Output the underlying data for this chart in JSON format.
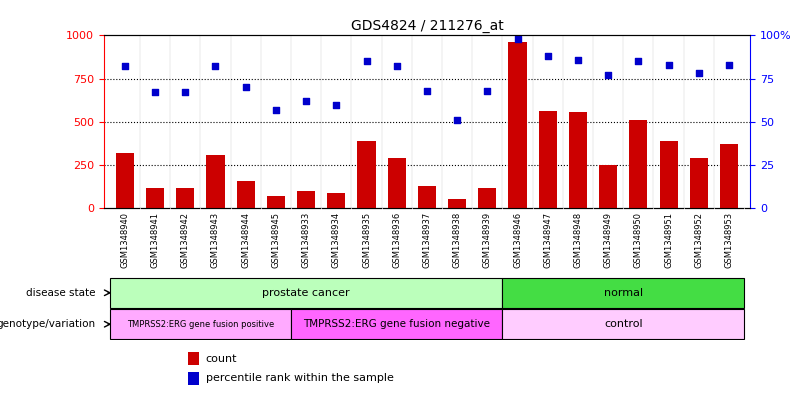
{
  "title": "GDS4824 / 211276_at",
  "samples": [
    "GSM1348940",
    "GSM1348941",
    "GSM1348942",
    "GSM1348943",
    "GSM1348944",
    "GSM1348945",
    "GSM1348933",
    "GSM1348934",
    "GSM1348935",
    "GSM1348936",
    "GSM1348937",
    "GSM1348938",
    "GSM1348939",
    "GSM1348946",
    "GSM1348947",
    "GSM1348948",
    "GSM1348949",
    "GSM1348950",
    "GSM1348951",
    "GSM1348952",
    "GSM1348953"
  ],
  "counts": [
    320,
    120,
    120,
    310,
    160,
    70,
    100,
    90,
    390,
    290,
    130,
    55,
    115,
    960,
    560,
    555,
    250,
    510,
    390,
    290,
    370
  ],
  "percentiles": [
    82,
    67,
    67,
    82,
    70,
    57,
    62,
    60,
    85,
    82,
    68,
    51,
    68,
    98,
    88,
    86,
    77,
    85,
    83,
    78,
    83
  ],
  "bar_color": "#cc0000",
  "dot_color": "#0000cc",
  "left_ylim": [
    0,
    1000
  ],
  "right_ylim": [
    0,
    100
  ],
  "left_yticks": [
    0,
    250,
    500,
    750,
    1000
  ],
  "right_yticks": [
    0,
    25,
    50,
    75,
    100
  ],
  "right_yticklabels": [
    "0",
    "25",
    "50",
    "75",
    "100%"
  ],
  "dotted_line_vals": [
    250,
    500,
    750
  ],
  "disease_state_groups": [
    {
      "label": "prostate cancer",
      "start": 0,
      "end": 12,
      "color": "#bbffbb"
    },
    {
      "label": "normal",
      "start": 13,
      "end": 20,
      "color": "#44dd44"
    }
  ],
  "genotype_groups": [
    {
      "label": "TMPRSS2:ERG gene fusion positive",
      "start": 0,
      "end": 5,
      "color": "#ffaaff",
      "fontsize": 6
    },
    {
      "label": "TMPRSS2:ERG gene fusion negative",
      "start": 6,
      "end": 12,
      "color": "#ff66ff",
      "fontsize": 7.5
    },
    {
      "label": "control",
      "start": 13,
      "end": 20,
      "color": "#ffccff",
      "fontsize": 8
    }
  ],
  "disease_state_label": "disease state",
  "genotype_label": "genotype/variation",
  "legend_count_label": "count",
  "legend_pct_label": "percentile rank within the sample",
  "xtick_bg_color": "#c8c8c8",
  "plot_bg": "#ffffff"
}
